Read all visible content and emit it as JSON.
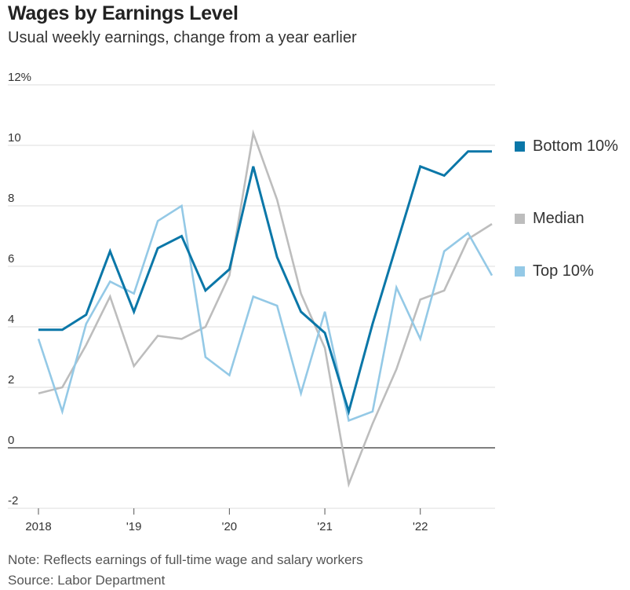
{
  "title": "Wages by Earnings Level",
  "subtitle": "Usual weekly earnings, change from a year earlier",
  "note": "Note: Reflects earnings of full-time wage and salary workers",
  "source": "Source: Labor Department",
  "legend": [
    {
      "name": "Bottom 10%",
      "color": "#0b77a8"
    },
    {
      "name": "Median",
      "color": "#bdbdbd"
    },
    {
      "name": "Top 10%",
      "color": "#94c9e6"
    }
  ],
  "chart_data": {
    "type": "line",
    "title": "Wages by Earnings Level",
    "subtitle": "Usual weekly earnings, change from a year earlier",
    "xlabel": "",
    "ylabel": "",
    "x": [
      "2018 Q1",
      "2018 Q2",
      "2018 Q3",
      "2018 Q4",
      "2019 Q1",
      "2019 Q2",
      "2019 Q3",
      "2019 Q4",
      "2020 Q1",
      "2020 Q2",
      "2020 Q3",
      "2020 Q4",
      "2021 Q1",
      "2021 Q2",
      "2021 Q3",
      "2021 Q4",
      "2022 Q1",
      "2022 Q2",
      "2022 Q3",
      "2022 Q4"
    ],
    "x_tick_labels": [
      "2018",
      "'19",
      "'20",
      "'21",
      "'22"
    ],
    "y_tick_labels": [
      "12%",
      "10",
      "8",
      "6",
      "4",
      "2",
      "0",
      "-2"
    ],
    "y_ticks": [
      12,
      10,
      8,
      6,
      4,
      2,
      0,
      -2
    ],
    "ylim": [
      -2,
      12
    ],
    "grid": true,
    "legend_position": "right",
    "series": [
      {
        "name": "Bottom 10%",
        "color": "#0b77a8",
        "values": [
          3.9,
          3.9,
          4.4,
          6.5,
          4.5,
          6.6,
          7.0,
          5.2,
          5.9,
          9.3,
          6.3,
          4.5,
          3.8,
          1.2,
          4.1,
          6.7,
          9.3,
          9.0,
          9.8,
          9.8
        ]
      },
      {
        "name": "Median",
        "color": "#bdbdbd",
        "values": [
          1.8,
          2.0,
          3.4,
          5.0,
          2.7,
          3.7,
          3.6,
          4.0,
          5.7,
          10.4,
          8.2,
          5.1,
          3.3,
          -1.2,
          0.8,
          2.6,
          4.9,
          5.2,
          6.9,
          7.4
        ]
      },
      {
        "name": "Top 10%",
        "color": "#94c9e6",
        "values": [
          3.6,
          1.2,
          4.1,
          5.5,
          5.1,
          7.5,
          8.0,
          3.0,
          2.4,
          5.0,
          4.7,
          1.8,
          4.5,
          0.9,
          1.2,
          5.3,
          3.6,
          6.5,
          7.1,
          5.7
        ]
      }
    ]
  }
}
